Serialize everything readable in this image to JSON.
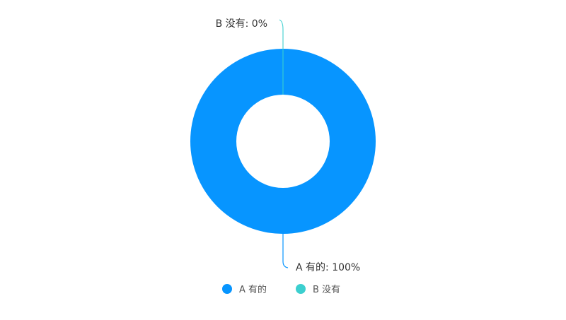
{
  "chart_data": {
    "type": "pie",
    "variant": "donut",
    "slices": [
      {
        "name": "A 有的",
        "value": 100,
        "label": "A 有的: 100%",
        "color": "#0795FF"
      },
      {
        "name": "B 没有",
        "value": 0,
        "label": "B 没有: 0%",
        "color": "#3CCFCF"
      }
    ],
    "legend": {
      "placement": "bottom",
      "items": [
        "A 有的",
        "B 没有"
      ]
    }
  }
}
